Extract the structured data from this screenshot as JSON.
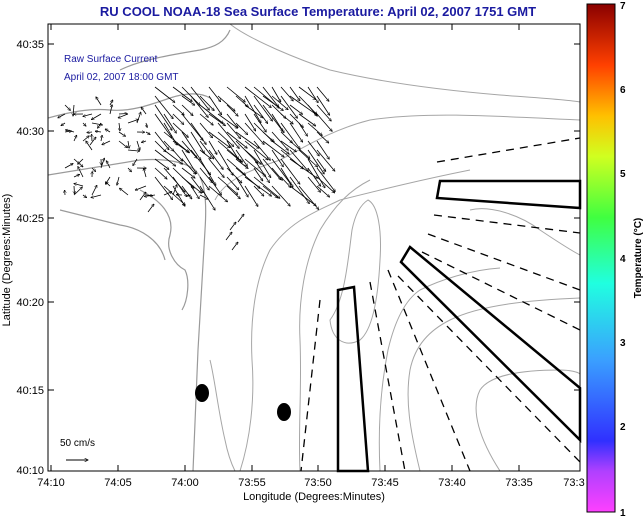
{
  "title": "RU COOL  NOAA-18  Sea Surface Temperature:  April 02, 2007 1751 GMT",
  "legend": {
    "line1": "Raw Surface Current",
    "line2": "April 02, 2007 18:00 GMT",
    "scale_label": "50 cm/s"
  },
  "axes": {
    "x_label": "Longitude (Degrees:Minutes)",
    "y_label": "Latitude (Degrees:Minutes)",
    "x_ticks": [
      "74:10",
      "74:05",
      "74:00",
      "73:55",
      "73:50",
      "73:45",
      "73:40",
      "73:35",
      "73:3"
    ],
    "y_ticks": [
      "40:35",
      "40:30",
      "40:25",
      "40:20",
      "40:15",
      "40:10"
    ]
  },
  "colorbar": {
    "label": "Temperature (°C)",
    "ticks": [
      "7",
      "6",
      "5",
      "4",
      "3",
      "2",
      "1"
    ],
    "min": 1,
    "max": 7
  },
  "colors": {
    "title": "#1a1aa0",
    "legend_text": "#1a1aa0",
    "land": "#9a9a9a",
    "contour": "#a6a6a6",
    "vector": "#000000"
  }
}
